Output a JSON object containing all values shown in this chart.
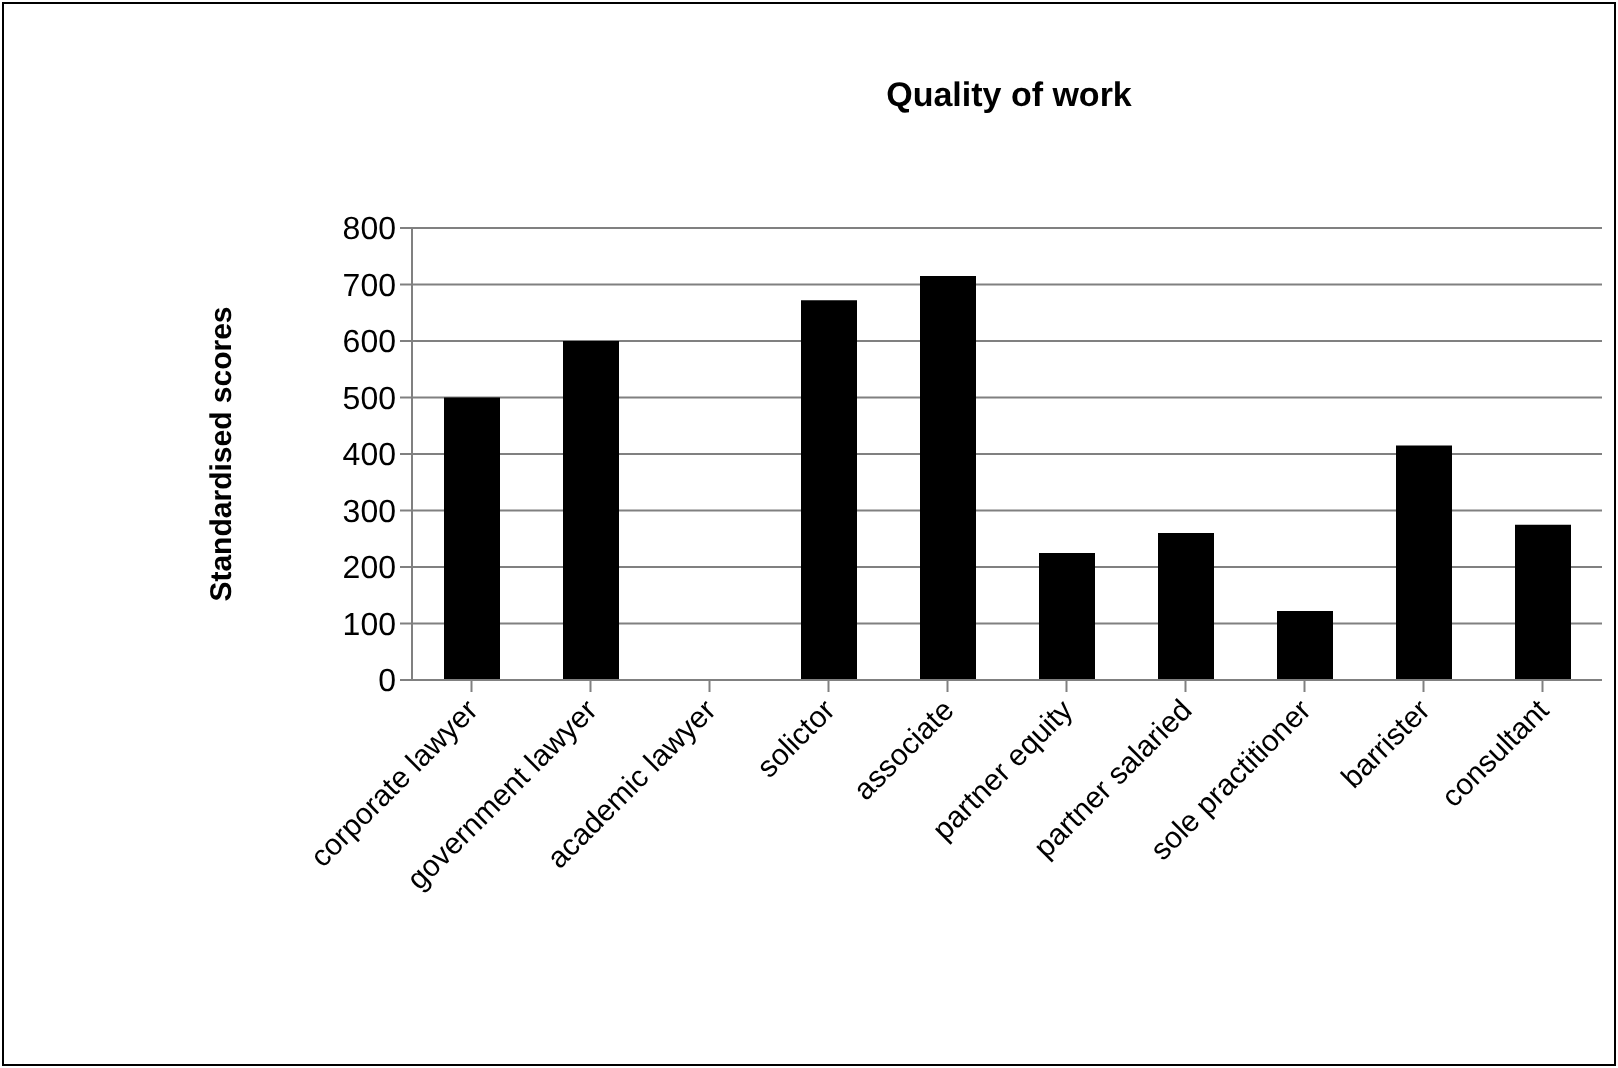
{
  "chart_data": {
    "type": "bar",
    "title": "Quality of work",
    "ylabel": "Standardised scores",
    "categories": [
      "corporate lawyer",
      "government lawyer",
      "academic lawyer",
      "solictor",
      "associate",
      "partner equity",
      "partner salaried",
      "sole practitioner",
      "barrister",
      "consultant"
    ],
    "values": [
      500,
      600,
      null,
      672,
      715,
      225,
      260,
      122,
      415,
      275
    ],
    "color": "#000000",
    "ylim": [
      0,
      800
    ],
    "yticks": [
      0,
      100,
      200,
      300,
      400,
      500,
      600,
      700,
      800
    ],
    "grid": "y"
  }
}
